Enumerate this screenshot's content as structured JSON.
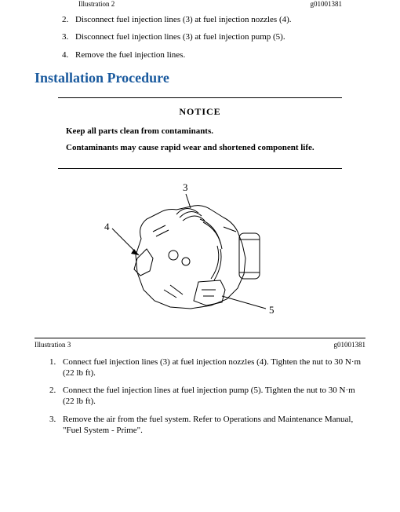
{
  "captionTop": {
    "left": "Illustration 2",
    "right": "g01001381"
  },
  "removalSteps": [
    "Disconnect fuel injection lines (3) at fuel injection nozzles (4).",
    "Disconnect fuel injection lines (3) at fuel injection pump (5).",
    "Remove the fuel injection lines."
  ],
  "removalStart": 2,
  "heading": "Installation Procedure",
  "notice": {
    "title": "NOTICE",
    "line1": "Keep all parts clean from contaminants.",
    "line2": "Contaminants may cause rapid wear and shortened component life."
  },
  "figure": {
    "labels": {
      "l3": "3",
      "l4": "4",
      "l5": "5"
    },
    "stroke": "#000000",
    "strokeWidth": 1
  },
  "captionBottom": {
    "left": "Illustration 3",
    "right": "g01001381"
  },
  "installSteps": [
    "Connect fuel injection lines (3) at fuel injection nozzles (4). Tighten the nut to 30 N·m (22 lb ft).",
    "Connect the fuel injection lines at fuel injection pump (5). Tighten the nut to 30 N·m (22 lb ft).",
    "Remove the air from the fuel system. Refer to Operations and Maintenance Manual, \"Fuel System - Prime\"."
  ],
  "colors": {
    "heading": "#1a5a9e",
    "text": "#000000",
    "bg": "#ffffff"
  }
}
